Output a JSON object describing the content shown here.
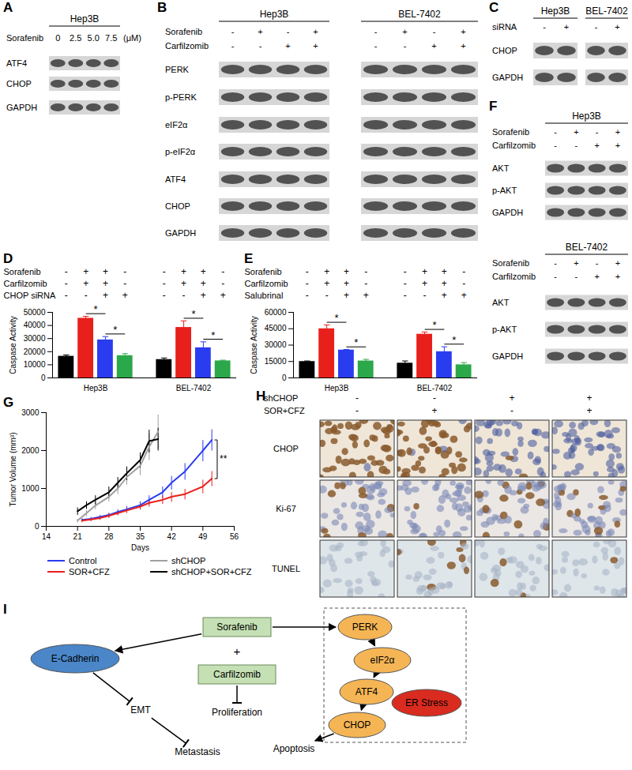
{
  "chart_data": [
    {
      "panel": "D",
      "type": "bar",
      "categories": [
        "Hep3B",
        "BEL-7402"
      ],
      "y_label": "Caspase Activity",
      "ylim": [
        0,
        50000
      ],
      "yticks": [
        0,
        10000,
        20000,
        30000,
        40000,
        50000
      ],
      "conditions": [
        {
          "label": "Sorafenib",
          "signs": [
            "-",
            "+",
            "+",
            "-"
          ]
        },
        {
          "label": "Carfilzomib",
          "signs": [
            "-",
            "+",
            "+",
            "-"
          ]
        },
        {
          "label": "CHOP siRNA",
          "signs": [
            "-",
            "-",
            "+",
            "+"
          ]
        }
      ],
      "series": [
        {
          "color": "#000000",
          "values": [
            16500,
            14000
          ],
          "errors": [
            1000,
            1200
          ]
        },
        {
          "color": "#e8201c",
          "values": [
            45500,
            38500
          ],
          "errors": [
            1500,
            5000
          ]
        },
        {
          "color": "#2a3cf0",
          "values": [
            29000,
            23000
          ],
          "errors": [
            2500,
            4500
          ]
        },
        {
          "color": "#2ba84a",
          "values": [
            17000,
            13000
          ],
          "errors": [
            1500,
            500
          ]
        }
      ],
      "significance": [
        {
          "category": "Hep3B",
          "bars": [
            1,
            2
          ],
          "label": "*"
        },
        {
          "category": "Hep3B",
          "bars": [
            2,
            3
          ],
          "label": "*"
        },
        {
          "category": "BEL-7402",
          "bars": [
            1,
            2
          ],
          "label": "*"
        },
        {
          "category": "BEL-7402",
          "bars": [
            2,
            3
          ],
          "label": "*"
        }
      ]
    },
    {
      "panel": "E",
      "type": "bar",
      "categories": [
        "Hep3B",
        "BEL-7402"
      ],
      "y_label": "Caspase Activity",
      "ylim": [
        0,
        60000
      ],
      "yticks": [
        0,
        15000,
        30000,
        45000,
        60000
      ],
      "conditions": [
        {
          "label": "Sorafenib",
          "signs": [
            "-",
            "+",
            "+",
            "-"
          ]
        },
        {
          "label": "Carfilzomib",
          "signs": [
            "-",
            "+",
            "+",
            "-"
          ]
        },
        {
          "label": "Salubrinal",
          "signs": [
            "-",
            "-",
            "+",
            "+"
          ]
        }
      ],
      "series": [
        {
          "color": "#000000",
          "values": [
            15000,
            13500
          ],
          "errors": [
            500,
            2000
          ]
        },
        {
          "color": "#e8201c",
          "values": [
            45000,
            40000
          ],
          "errors": [
            3500,
            2000
          ]
        },
        {
          "color": "#2a3cf0",
          "values": [
            25500,
            24000
          ],
          "errors": [
            500,
            4500
          ]
        },
        {
          "color": "#2ba84a",
          "values": [
            15500,
            12000
          ],
          "errors": [
            1500,
            2000
          ]
        }
      ],
      "significance": [
        {
          "category": "Hep3B",
          "bars": [
            1,
            2
          ],
          "label": "*"
        },
        {
          "category": "Hep3B",
          "bars": [
            2,
            3
          ],
          "label": "*"
        },
        {
          "category": "BEL-7402",
          "bars": [
            1,
            2
          ],
          "label": "*"
        },
        {
          "category": "BEL-7402",
          "bars": [
            2,
            3
          ],
          "label": "*"
        }
      ]
    },
    {
      "panel": "G",
      "type": "line",
      "x_label": "Days",
      "y_label": "Tumor Volume (mm³)",
      "xlim": [
        14,
        56
      ],
      "xticks": [
        14,
        21,
        28,
        35,
        42,
        49,
        56
      ],
      "ylim": [
        0,
        3000
      ],
      "yticks": [
        0,
        1000,
        2000,
        3000
      ],
      "legend": "bottom",
      "series": [
        {
          "name": "Control",
          "color": "#2a3cf0",
          "x": [
            22,
            24,
            26,
            28,
            30,
            32,
            35,
            37,
            40,
            42,
            45,
            49,
            51
          ],
          "values": [
            170,
            200,
            250,
            300,
            380,
            450,
            560,
            700,
            900,
            1150,
            1450,
            2000,
            2280
          ],
          "errors": [
            40,
            50,
            50,
            60,
            70,
            80,
            100,
            120,
            150,
            180,
            220,
            280,
            280
          ]
        },
        {
          "name": "shCHOP",
          "color": "#a0a0a0",
          "x": [
            21,
            23,
            25,
            28,
            30,
            32,
            35,
            37,
            39
          ],
          "values": [
            150,
            350,
            550,
            780,
            1000,
            1300,
            1600,
            2100,
            2500
          ],
          "errors": [
            50,
            80,
            100,
            120,
            150,
            200,
            250,
            350,
            450
          ]
        },
        {
          "name": "SOR+CFZ",
          "color": "#e8201c",
          "x": [
            22,
            24,
            26,
            28,
            30,
            32,
            35,
            37,
            40,
            42,
            45,
            49,
            51
          ],
          "values": [
            150,
            180,
            220,
            280,
            350,
            420,
            520,
            620,
            700,
            780,
            850,
            1050,
            1260
          ],
          "errors": [
            40,
            40,
            50,
            60,
            60,
            70,
            80,
            100,
            110,
            130,
            140,
            180,
            200
          ]
        },
        {
          "name": "shCHOP+SOR+CFZ",
          "color": "#000000",
          "x": [
            21,
            23,
            25,
            28,
            30,
            32,
            35,
            37,
            39
          ],
          "values": [
            400,
            560,
            700,
            900,
            1150,
            1400,
            1750,
            2250,
            2300
          ],
          "errors": [
            100,
            100,
            120,
            150,
            150,
            180,
            200,
            300,
            300
          ]
        }
      ],
      "annotations": [
        {
          "label": "**",
          "series": [
            "Control",
            "SOR+CFZ"
          ]
        }
      ]
    }
  ],
  "panel_A": {
    "panel": "A",
    "cell_lines": [
      "Hep3B"
    ],
    "conditions": [
      {
        "label": "Sorafenib",
        "values": [
          "0",
          "2.5",
          "5.0",
          "7.5"
        ]
      }
    ],
    "unit": "(μM)",
    "rows": [
      "ATF4",
      "CHOP",
      "GAPDH"
    ]
  },
  "panel_B": {
    "panel": "B",
    "cell_lines": [
      "Hep3B",
      "BEL-7402"
    ],
    "conditions": [
      {
        "label": "Sorafenib",
        "signs": [
          "-",
          "+",
          "-",
          "+"
        ]
      },
      {
        "label": "Carfilzomib",
        "signs": [
          "-",
          "-",
          "+",
          "+"
        ]
      }
    ],
    "rows": [
      "PERK",
      "p-PERK",
      "eIF2α",
      "p-eIF2α",
      "ATF4",
      "CHOP",
      "GAPDH"
    ]
  },
  "panel_C": {
    "panel": "C",
    "cell_lines": [
      "Hep3B",
      "BEL-7402"
    ],
    "conditions": [
      {
        "label": "siRNA",
        "signs": [
          "-",
          "+"
        ]
      }
    ],
    "rows": [
      "CHOP",
      "GAPDH"
    ]
  },
  "panel_F": {
    "panel": "F",
    "blocks": [
      {
        "cell_line": "Hep3B",
        "conditions": [
          {
            "label": "Sorafenib",
            "signs": [
              "-",
              "+",
              "-",
              "+"
            ]
          },
          {
            "label": "Carfilzomib",
            "signs": [
              "-",
              "-",
              "+",
              "+"
            ]
          }
        ],
        "rows": [
          "AKT",
          "p-AKT",
          "GAPDH"
        ]
      },
      {
        "cell_line": "BEL-7402",
        "conditions": [
          {
            "label": "Sorafenib",
            "signs": [
              "-",
              "+",
              "-",
              "+"
            ]
          },
          {
            "label": "Carfilzomib",
            "signs": [
              "-",
              "-",
              "+",
              "+"
            ]
          }
        ],
        "rows": [
          "AKT",
          "p-AKT",
          "GAPDH"
        ]
      }
    ]
  },
  "panel_H": {
    "panel": "H",
    "conditions": [
      {
        "label": "shCHOP",
        "signs": [
          "-",
          "-",
          "+",
          "+"
        ]
      },
      {
        "label": "SOR+CFZ",
        "signs": [
          "-",
          "+",
          "-",
          "+"
        ]
      }
    ],
    "rows": [
      "CHOP",
      "Ki-67",
      "TUNEL"
    ]
  },
  "panel_I": {
    "panel": "I",
    "nodes": [
      {
        "label": "Sorafenib",
        "shape": "box",
        "color": "#c5e0b4"
      },
      {
        "label": "+",
        "shape": "text"
      },
      {
        "label": "Carfilzomib",
        "shape": "box",
        "color": "#c5e0b4"
      },
      {
        "label": "E-Cadherin",
        "shape": "ellipse",
        "color": "#4a86c8"
      },
      {
        "label": "EMT",
        "shape": "text"
      },
      {
        "label": "Metastasis",
        "shape": "text"
      },
      {
        "label": "Proliferation",
        "shape": "text"
      },
      {
        "label": "PERK",
        "shape": "ellipse",
        "color": "#f5b555"
      },
      {
        "label": "eIF2α",
        "shape": "ellipse",
        "color": "#f5b555"
      },
      {
        "label": "ATF4",
        "shape": "ellipse",
        "color": "#f5b555"
      },
      {
        "label": "CHOP",
        "shape": "ellipse",
        "color": "#f5b555"
      },
      {
        "label": "ER Stress",
        "shape": "ellipse",
        "color": "#d92b1f"
      },
      {
        "label": "Apoptosis",
        "shape": "text"
      }
    ],
    "edges": [
      {
        "from": "Sorafenib",
        "to": "E-Cadherin",
        "type": "activate"
      },
      {
        "from": "Sorafenib",
        "to": "PERK",
        "type": "activate"
      },
      {
        "from": "E-Cadherin",
        "to": "EMT",
        "type": "inhibit"
      },
      {
        "from": "EMT",
        "to": "Metastasis",
        "type": "inhibit"
      },
      {
        "from": "Carfilzomib",
        "to": "Proliferation",
        "type": "inhibit"
      },
      {
        "from": "PERK",
        "to": "eIF2α",
        "type": "activate"
      },
      {
        "from": "eIF2α",
        "to": "ATF4",
        "type": "activate"
      },
      {
        "from": "ATF4",
        "to": "CHOP",
        "type": "activate"
      },
      {
        "from": "CHOP",
        "to": "Apoptosis",
        "type": "activate"
      }
    ]
  }
}
